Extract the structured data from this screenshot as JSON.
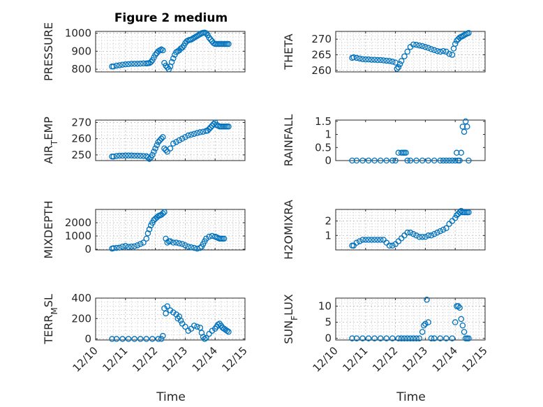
{
  "figure": {
    "title": "Figure 2 medium",
    "xlabel": "Time",
    "marker_color": "#0072BD"
  },
  "chart_data": [
    {
      "type": "scatter",
      "ylabel": "PRESSURE",
      "xlim": [
        0,
        5
      ],
      "ylim": [
        785,
        1010
      ],
      "yticks": [
        800,
        900,
        1000
      ],
      "grid": true,
      "series": [
        {
          "x": [
            0.55,
            0.6,
            0.7,
            0.8,
            0.9,
            1.0,
            1.1,
            1.2,
            1.3,
            1.4,
            1.5,
            1.6,
            1.7,
            1.75,
            1.8,
            1.85,
            1.9,
            1.95,
            2.0,
            2.05,
            2.1,
            2.15,
            2.2,
            2.25,
            2.3,
            2.35,
            2.4,
            2.45,
            2.5,
            2.55,
            2.6,
            2.65,
            2.7,
            2.75,
            2.8,
            2.85,
            2.9,
            2.95,
            3.0,
            3.05,
            3.1,
            3.15,
            3.2,
            3.25,
            3.3,
            3.35,
            3.4,
            3.45,
            3.5,
            3.55,
            3.6,
            3.65,
            3.7,
            3.75,
            3.8,
            3.85,
            3.9,
            3.95,
            4.0,
            4.05,
            4.1,
            4.15,
            4.2,
            4.25,
            4.3,
            4.35,
            4.4,
            4.45
          ],
          "y": [
            815,
            815,
            820,
            822,
            825,
            827,
            828,
            830,
            830,
            830,
            831,
            832,
            832,
            833,
            834,
            840,
            850,
            865,
            880,
            890,
            900,
            905,
            910,
            905,
            835,
            820,
            810,
            800,
            815,
            840,
            860,
            880,
            895,
            900,
            905,
            915,
            920,
            930,
            945,
            955,
            960,
            963,
            965,
            970,
            975,
            980,
            985,
            990,
            995,
            1000,
            1002,
            1003,
            1000,
            990,
            975,
            965,
            955,
            945,
            940,
            940,
            940,
            940,
            940,
            940,
            940,
            940,
            940,
            940
          ]
        }
      ]
    },
    {
      "type": "scatter",
      "ylabel": "THETA",
      "xlim": [
        0,
        5
      ],
      "ylim": [
        259.5,
        272.5
      ],
      "yticks": [
        260,
        265,
        270
      ],
      "grid": true,
      "series": [
        {
          "x": [
            0.55,
            0.6,
            0.7,
            0.8,
            0.9,
            1.0,
            1.1,
            1.2,
            1.3,
            1.4,
            1.5,
            1.6,
            1.7,
            1.8,
            1.9,
            2.0,
            2.05,
            2.1,
            2.15,
            2.2,
            2.3,
            2.4,
            2.5,
            2.6,
            2.7,
            2.8,
            2.9,
            3.0,
            3.1,
            3.2,
            3.3,
            3.4,
            3.5,
            3.6,
            3.7,
            3.8,
            3.9,
            3.95,
            4.0,
            4.05,
            4.1,
            4.15,
            4.2,
            4.25,
            4.3,
            4.35,
            4.4,
            4.45
          ],
          "y": [
            264,
            264.2,
            264,
            263.8,
            263.6,
            263.5,
            263.5,
            263.4,
            263.4,
            263.3,
            263.3,
            263.2,
            263.1,
            263.0,
            262.8,
            262.5,
            260.5,
            261.0,
            262.0,
            263.0,
            264.5,
            266.0,
            267.5,
            268.3,
            268.2,
            268.0,
            267.8,
            267.5,
            267.2,
            266.8,
            266.5,
            266.2,
            266.0,
            266.2,
            266.0,
            265.3,
            265.0,
            267.0,
            268.5,
            269.5,
            270.0,
            270.5,
            270.8,
            271.0,
            271.3,
            271.6,
            271.8,
            272.0
          ]
        }
      ]
    },
    {
      "type": "scatter",
      "ylabel": "AIR_TEMP",
      "xlim": [
        0,
        5
      ],
      "ylim": [
        246.5,
        271.5
      ],
      "yticks": [
        250,
        260,
        270
      ],
      "grid": true,
      "series": [
        {
          "x": [
            0.55,
            0.6,
            0.7,
            0.8,
            0.9,
            1.0,
            1.1,
            1.2,
            1.3,
            1.4,
            1.5,
            1.6,
            1.7,
            1.75,
            1.8,
            1.85,
            1.9,
            1.95,
            2.0,
            2.05,
            2.1,
            2.15,
            2.2,
            2.25,
            2.3,
            2.35,
            2.4,
            2.5,
            2.6,
            2.7,
            2.8,
            2.9,
            3.0,
            3.1,
            3.2,
            3.3,
            3.4,
            3.5,
            3.6,
            3.7,
            3.75,
            3.8,
            3.85,
            3.9,
            3.95,
            4.0,
            4.05,
            4.1,
            4.15,
            4.2,
            4.25,
            4.3,
            4.35,
            4.4,
            4.45
          ],
          "y": [
            249,
            249,
            249.3,
            249.5,
            249.5,
            249.6,
            249.6,
            249.6,
            249.5,
            249.5,
            249.4,
            249.3,
            249.2,
            248.5,
            247.5,
            248.5,
            250,
            252,
            254,
            256,
            258,
            259,
            260,
            261,
            254,
            253,
            252,
            254,
            257,
            258,
            259,
            260,
            261,
            262,
            262.5,
            263,
            263.5,
            264,
            264.3,
            264.8,
            265,
            266,
            267,
            268,
            269,
            270,
            268.5,
            268,
            267.5,
            267.5,
            267.5,
            267.5,
            267.5,
            267.5,
            267.5
          ]
        }
      ]
    },
    {
      "type": "scatter",
      "ylabel": "RAINFALL",
      "xlim": [
        0,
        5
      ],
      "ylim": [
        0,
        1.55
      ],
      "yticks": [
        0,
        0.5,
        1,
        1.5
      ],
      "grid": false,
      "series": [
        {
          "x": [
            0.55,
            0.7,
            0.9,
            1.1,
            1.3,
            1.5,
            1.7,
            1.9,
            2.0,
            2.1,
            2.2,
            2.25,
            2.3,
            2.35,
            2.4,
            2.5,
            2.7,
            2.9,
            3.1,
            3.3,
            3.5,
            3.6,
            3.7,
            3.8,
            3.9,
            4.0,
            4.05,
            4.1,
            4.15,
            4.2,
            4.25,
            4.3,
            4.35,
            4.4,
            4.45
          ],
          "y": [
            0,
            0,
            0,
            0,
            0,
            0,
            0,
            0,
            0,
            0.3,
            0.3,
            0.3,
            0.3,
            0.3,
            0,
            0,
            0,
            0,
            0,
            0,
            0,
            0,
            0,
            0,
            0,
            0,
            0.3,
            0,
            0,
            0.3,
            1.3,
            1.1,
            1.5,
            1.3,
            0
          ]
        }
      ]
    },
    {
      "type": "scatter",
      "ylabel": "MIXDEPTH",
      "xlim": [
        0,
        5
      ],
      "ylim": [
        -50,
        3000
      ],
      "yticks": [
        0,
        1000,
        2000
      ],
      "grid": true,
      "series": [
        {
          "x": [
            0.55,
            0.6,
            0.7,
            0.8,
            0.9,
            1.0,
            1.1,
            1.2,
            1.3,
            1.4,
            1.5,
            1.6,
            1.7,
            1.75,
            1.8,
            1.85,
            1.9,
            1.95,
            2.0,
            2.05,
            2.1,
            2.15,
            2.2,
            2.25,
            2.3,
            2.35,
            2.4,
            2.45,
            2.5,
            2.6,
            2.7,
            2.8,
            2.9,
            3.0,
            3.1,
            3.2,
            3.3,
            3.4,
            3.5,
            3.55,
            3.6,
            3.65,
            3.7,
            3.8,
            3.9,
            4.0,
            4.05,
            4.1,
            4.15,
            4.2,
            4.25,
            4.3
          ],
          "y": [
            50,
            80,
            100,
            120,
            200,
            250,
            180,
            200,
            220,
            300,
            400,
            500,
            800,
            1200,
            1500,
            1800,
            2000,
            2200,
            2300,
            2400,
            2500,
            2550,
            2600,
            2700,
            2800,
            800,
            500,
            600,
            600,
            500,
            500,
            450,
            400,
            300,
            200,
            150,
            100,
            50,
            100,
            200,
            400,
            600,
            800,
            950,
            1000,
            950,
            900,
            850,
            800,
            800,
            800,
            800
          ]
        }
      ]
    },
    {
      "type": "scatter",
      "ylabel": "H2OMIXRA",
      "xlim": [
        0,
        5
      ],
      "ylim": [
        0,
        2.8
      ],
      "yticks": [
        1,
        2
      ],
      "grid": true,
      "series": [
        {
          "x": [
            0.55,
            0.6,
            0.7,
            0.8,
            0.9,
            1.0,
            1.1,
            1.2,
            1.3,
            1.4,
            1.5,
            1.6,
            1.7,
            1.8,
            1.9,
            2.0,
            2.1,
            2.2,
            2.3,
            2.4,
            2.5,
            2.6,
            2.7,
            2.8,
            2.9,
            3.0,
            3.1,
            3.2,
            3.3,
            3.4,
            3.5,
            3.6,
            3.7,
            3.8,
            3.9,
            4.0,
            4.05,
            4.1,
            4.15,
            4.2,
            4.25,
            4.3,
            4.35,
            4.4,
            4.45
          ],
          "y": [
            0.3,
            0.3,
            0.5,
            0.6,
            0.7,
            0.7,
            0.7,
            0.7,
            0.7,
            0.7,
            0.7,
            0.7,
            0.5,
            0.3,
            0.3,
            0.4,
            0.6,
            0.8,
            1.0,
            1.2,
            1.2,
            1.1,
            1.0,
            0.9,
            0.9,
            0.9,
            1.0,
            1.0,
            1.1,
            1.2,
            1.3,
            1.4,
            1.5,
            1.8,
            2.0,
            2.2,
            2.4,
            2.5,
            2.6,
            2.7,
            2.6,
            2.6,
            2.6,
            2.6,
            2.6
          ]
        }
      ]
    },
    {
      "type": "scatter",
      "ylabel": "TERR_MSL",
      "xlim": [
        0,
        5
      ],
      "ylim": [
        -10,
        400
      ],
      "yticks": [
        0,
        200,
        400
      ],
      "grid": true,
      "series": [
        {
          "x": [
            0.55,
            0.7,
            0.9,
            1.1,
            1.3,
            1.5,
            1.7,
            1.9,
            2.1,
            2.2,
            2.25,
            2.3,
            2.35,
            2.4,
            2.5,
            2.6,
            2.7,
            2.75,
            2.8,
            2.85,
            2.9,
            3.0,
            3.1,
            3.2,
            3.3,
            3.4,
            3.5,
            3.55,
            3.6,
            3.65,
            3.7,
            3.8,
            3.9,
            4.0,
            4.05,
            4.1,
            4.15,
            4.2,
            4.25,
            4.3,
            4.35,
            4.4,
            4.45
          ],
          "y": [
            0,
            0,
            0,
            0,
            0,
            0,
            0,
            0,
            0,
            0,
            30,
            300,
            250,
            320,
            280,
            260,
            240,
            200,
            220,
            180,
            150,
            120,
            80,
            100,
            130,
            120,
            110,
            60,
            20,
            0,
            10,
            50,
            80,
            100,
            120,
            140,
            150,
            130,
            110,
            100,
            90,
            80,
            70
          ]
        }
      ]
    },
    {
      "type": "scatter",
      "ylabel": "SUN_FLUX",
      "xlim": [
        0,
        5
      ],
      "ylim": [
        -0.5,
        12.5
      ],
      "yticks": [
        0,
        5,
        10
      ],
      "grid": true,
      "series": [
        {
          "x": [
            0.55,
            0.7,
            0.9,
            1.1,
            1.3,
            1.5,
            1.7,
            1.9,
            2.1,
            2.2,
            2.3,
            2.4,
            2.5,
            2.6,
            2.7,
            2.8,
            2.9,
            2.95,
            3.0,
            3.05,
            3.1,
            3.2,
            3.3,
            3.5,
            3.7,
            3.9,
            4.0,
            4.05,
            4.1,
            4.15,
            4.2,
            4.25,
            4.3,
            4.35,
            4.4,
            4.45
          ],
          "y": [
            0,
            0,
            0,
            0,
            0,
            0,
            0,
            0,
            0,
            0,
            0,
            0,
            0,
            0,
            0,
            0,
            2,
            4,
            4.5,
            12,
            5,
            0,
            0,
            0,
            0,
            0,
            5,
            10,
            10,
            9.5,
            6,
            4,
            2,
            0,
            0,
            0
          ]
        }
      ]
    }
  ]
}
